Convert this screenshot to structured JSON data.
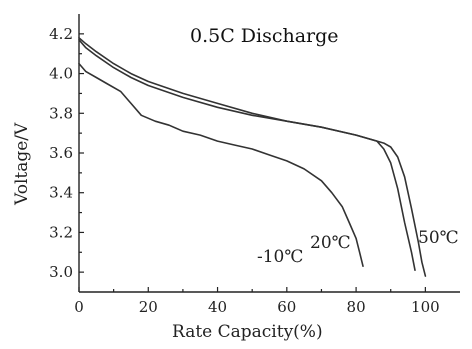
{
  "chart_data": {
    "type": "line",
    "title": "0.5C Discharge",
    "xlabel": "Rate Capacity(%)",
    "ylabel": "Voltage/V",
    "xlim": [
      0,
      110
    ],
    "ylim": [
      2.9,
      4.3
    ],
    "xticks": [
      0,
      20,
      40,
      60,
      80,
      100
    ],
    "yticks": [
      3.0,
      3.2,
      3.4,
      3.6,
      3.8,
      4.0,
      4.2
    ],
    "grid": false,
    "series": [
      {
        "name": "-10℃",
        "x": [
          0,
          2,
          5,
          8,
          12,
          15,
          18,
          22,
          26,
          30,
          35,
          40,
          45,
          50,
          55,
          60,
          65,
          70,
          73,
          76,
          78,
          80,
          81,
          82
        ],
        "y": [
          4.05,
          4.01,
          3.98,
          3.95,
          3.91,
          3.85,
          3.79,
          3.76,
          3.74,
          3.71,
          3.69,
          3.66,
          3.64,
          3.62,
          3.59,
          3.56,
          3.52,
          3.46,
          3.4,
          3.33,
          3.25,
          3.17,
          3.1,
          3.03
        ]
      },
      {
        "name": "20℃",
        "x": [
          0,
          2,
          5,
          10,
          15,
          20,
          30,
          40,
          50,
          60,
          70,
          80,
          86,
          88,
          90,
          92,
          94,
          96,
          97
        ],
        "y": [
          4.17,
          4.13,
          4.09,
          4.03,
          3.98,
          3.94,
          3.88,
          3.83,
          3.79,
          3.76,
          3.73,
          3.69,
          3.66,
          3.62,
          3.55,
          3.42,
          3.25,
          3.1,
          3.01
        ]
      },
      {
        "name": "50℃",
        "x": [
          0,
          2,
          5,
          10,
          15,
          20,
          30,
          40,
          50,
          60,
          70,
          80,
          88,
          90,
          92,
          94,
          96,
          98,
          99,
          100
        ],
        "y": [
          4.18,
          4.15,
          4.11,
          4.05,
          4.0,
          3.96,
          3.9,
          3.85,
          3.8,
          3.76,
          3.73,
          3.69,
          3.65,
          3.63,
          3.58,
          3.48,
          3.32,
          3.15,
          3.05,
          2.98
        ]
      }
    ]
  }
}
